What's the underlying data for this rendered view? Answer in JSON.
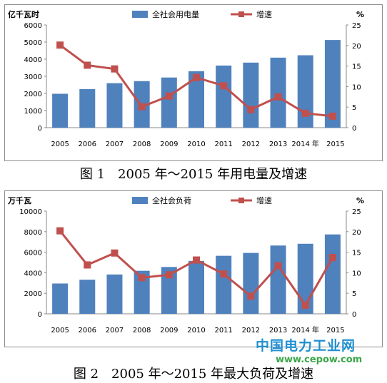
{
  "chart_data": [
    {
      "type": "bar",
      "secondary_type": "line",
      "ylabel_left": "亿千瓦时",
      "ylabel_right": "%",
      "categories": [
        "2005",
        "2006",
        "2007",
        "2008",
        "2009",
        "2010",
        "2011",
        "2012",
        "2013",
        "2014",
        "2015"
      ],
      "ylim_left": [
        0,
        6000
      ],
      "yticks_left": [
        0,
        1000,
        2000,
        3000,
        4000,
        5000,
        6000
      ],
      "ylim_right": [
        0,
        25
      ],
      "yticks_right": [
        0,
        5,
        10,
        15,
        20,
        25
      ],
      "legend_position": "top",
      "series": [
        {
          "name": "全社会用电量",
          "axis": "left",
          "kind": "bar",
          "color": "#4f81bd",
          "values": [
            1980,
            2250,
            2600,
            2720,
            2930,
            3300,
            3630,
            3800,
            4090,
            4230,
            5120
          ]
        },
        {
          "name": "增速",
          "axis": "right",
          "kind": "line",
          "color": "#c0504d",
          "values": [
            20.1,
            15.2,
            14.3,
            5.1,
            7.7,
            12.2,
            10.2,
            4.4,
            7.5,
            3.5,
            2.8
          ]
        }
      ],
      "x_tick_labels": [
        "2005",
        "2006",
        "2007",
        "2008",
        "2009",
        "2010",
        "2011",
        "2012",
        "2013",
        "2014 年",
        "2015"
      ]
    },
    {
      "type": "bar",
      "secondary_type": "line",
      "ylabel_left": "万千瓦",
      "ylabel_right": "%",
      "categories": [
        "2005",
        "2006",
        "2007",
        "2008",
        "2009",
        "2010",
        "2011",
        "2012",
        "2013",
        "2014",
        "2015"
      ],
      "ylim_left": [
        0,
        10000
      ],
      "yticks_left": [
        0,
        2000,
        4000,
        6000,
        8000,
        10000
      ],
      "ylim_right": [
        0,
        25
      ],
      "yticks_right": [
        0,
        5,
        10,
        15,
        20,
        25
      ],
      "legend_position": "top",
      "series": [
        {
          "name": "全社会负荷",
          "axis": "left",
          "kind": "bar",
          "color": "#4f81bd",
          "values": [
            2950,
            3320,
            3830,
            4190,
            4560,
            5150,
            5650,
            5930,
            6650,
            6820,
            7730
          ]
        },
        {
          "name": "增速",
          "axis": "right",
          "kind": "line",
          "color": "#c0504d",
          "values": [
            20.2,
            11.9,
            14.8,
            8.8,
            9.5,
            13.1,
            9.7,
            4.3,
            11.7,
            2.1,
            13.7
          ]
        }
      ],
      "x_tick_labels": [
        "2005",
        "2006",
        "2007",
        "2008",
        "2009",
        "2010",
        "2011",
        "2012",
        "2013",
        "2014 年",
        "2015"
      ]
    }
  ],
  "captions": {
    "figure1": "图 1　2005 年～2015 年用电量及增速",
    "figure2": "图 2　2005 年～2015 年最大负荷及增速"
  },
  "watermark": {
    "text_cn": "中国电力工业网",
    "text_url": "www.cepow.com"
  }
}
